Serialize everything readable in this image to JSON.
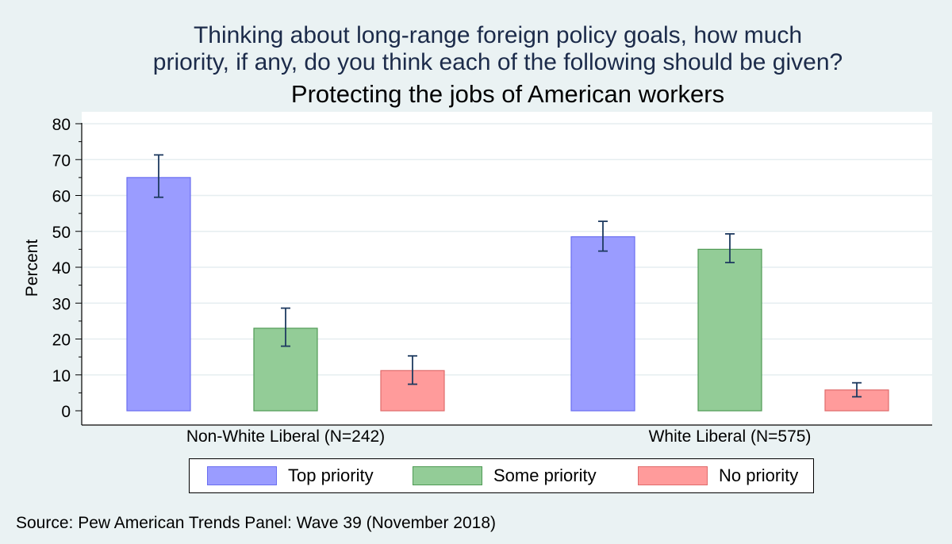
{
  "titles": {
    "line1": "Thinking about long-range foreign policy goals, how much",
    "line2": "priority, if any, do you think each of the following should be given?",
    "subtitle": "Protecting the jobs of American workers"
  },
  "source": "Source: Pew American Trends Panel: Wave 39 (November 2018)",
  "chart_data": {
    "type": "bar",
    "title": "Thinking about long-range foreign policy goals, how much priority, if any, do you think each of the following should be given?",
    "subtitle": "Protecting the jobs of American workers",
    "xlabel": "",
    "ylabel": "Percent",
    "ylim": [
      0,
      80
    ],
    "yticks": [
      0,
      10,
      20,
      30,
      40,
      50,
      60,
      70,
      80
    ],
    "grid": true,
    "legend_position": "bottom",
    "categories": [
      "Non-White Liberal (N=242)",
      "White Liberal (N=575)"
    ],
    "series": [
      {
        "name": "Top priority",
        "color": "#9a9cff",
        "edge": "#6a6ff0",
        "values": [
          65,
          48.5
        ],
        "ci_low": [
          59.5,
          44.5
        ],
        "ci_high": [
          71.3,
          52.8
        ]
      },
      {
        "name": "Some priority",
        "color": "#93cc97",
        "edge": "#4f9a55",
        "values": [
          23,
          45
        ],
        "ci_low": [
          18,
          41.3
        ],
        "ci_high": [
          28.6,
          49.3
        ]
      },
      {
        "name": "No priority",
        "color": "#ff9b9b",
        "edge": "#e06b6b",
        "values": [
          11.2,
          5.8
        ],
        "ci_low": [
          7.4,
          3.9
        ],
        "ci_high": [
          15.3,
          7.8
        ]
      }
    ],
    "error_bar_color": "#1e3a60"
  }
}
